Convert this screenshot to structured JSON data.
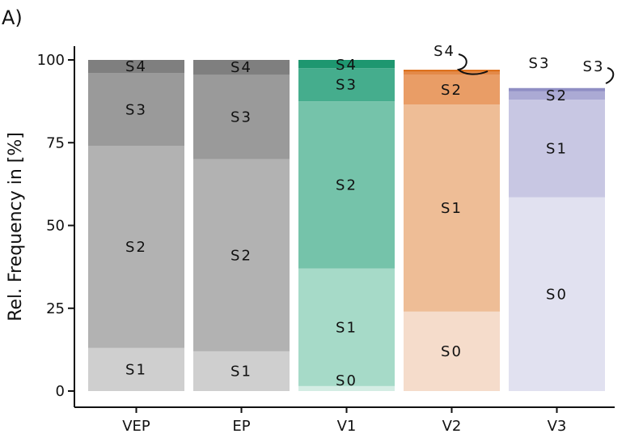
{
  "panel_label": "A)",
  "chart_data": {
    "type": "bar",
    "stacked": true,
    "title": "",
    "xlabel": "",
    "ylabel": "Rel. Frequency in [%]",
    "ylim": [
      0,
      100
    ],
    "yticks": [
      0,
      25,
      50,
      75,
      100
    ],
    "yticklabels": [
      "0",
      "25",
      "50",
      "75",
      "100"
    ],
    "categories": [
      "VEP",
      "EP",
      "V1",
      "V2",
      "V3"
    ],
    "grid": false,
    "bars": [
      {
        "category": "VEP",
        "segments": [
          {
            "name": "S1",
            "value": 13,
            "label": "S1",
            "color": "#cfcfcf"
          },
          {
            "name": "S2",
            "value": 61,
            "label": "S2",
            "color": "#b2b2b2"
          },
          {
            "name": "S3",
            "value": 22,
            "label": "S3",
            "color": "#9a9a9a"
          },
          {
            "name": "S4",
            "value": 4,
            "label": "S4",
            "color": "#7f7f7f"
          }
        ]
      },
      {
        "category": "EP",
        "segments": [
          {
            "name": "S1",
            "value": 12,
            "label": "S1",
            "color": "#cfcfcf"
          },
          {
            "name": "S2",
            "value": 58,
            "label": "S2",
            "color": "#b2b2b2"
          },
          {
            "name": "S3",
            "value": 25.5,
            "label": "S3",
            "color": "#9a9a9a"
          },
          {
            "name": "S4",
            "value": 4.5,
            "label": "S4",
            "color": "#7f7f7f"
          }
        ]
      },
      {
        "category": "V1",
        "segments": [
          {
            "name": "S0",
            "value": 1.5,
            "label": "S0",
            "color": "#d4ede4"
          },
          {
            "name": "S1",
            "value": 35.5,
            "label": "S1",
            "color": "#a6dac8"
          },
          {
            "name": "S2",
            "value": 50.5,
            "label": "S2",
            "color": "#75c3aa"
          },
          {
            "name": "S3",
            "value": 10,
            "label": "S3",
            "color": "#45ad8d"
          },
          {
            "name": "S4",
            "value": 2.5,
            "label": "S4",
            "color": "#1e9770"
          }
        ]
      },
      {
        "category": "V2",
        "segments": [
          {
            "name": "S0",
            "value": 24,
            "label": "S0",
            "color": "#f5dccb"
          },
          {
            "name": "S1",
            "value": 62.5,
            "label": "S1",
            "color": "#eebd96"
          },
          {
            "name": "S2",
            "value": 9,
            "label": "S2",
            "color": "#e99d66"
          },
          {
            "name": "S3",
            "value": 1,
            "label": "S3",
            "color": "#e38948"
          },
          {
            "name": "S4",
            "value": 0.5,
            "label": "S4",
            "color": "#d95f02"
          }
        ]
      },
      {
        "category": "V3",
        "segments": [
          {
            "name": "S0",
            "value": 58.5,
            "label": "S0",
            "color": "#e1e1f0"
          },
          {
            "name": "S1",
            "value": 29.5,
            "label": "S1",
            "color": "#c8c7e3"
          },
          {
            "name": "S2",
            "value": 2.5,
            "label": "S2",
            "color": "#abaad4"
          },
          {
            "name": "S3",
            "value": 1,
            "label": "S3",
            "color": "#8f8ec4"
          }
        ]
      }
    ]
  }
}
